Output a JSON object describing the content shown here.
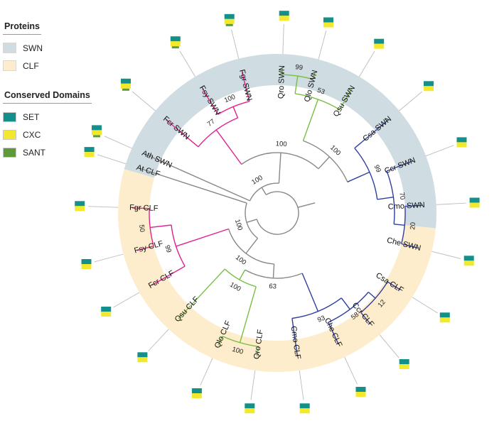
{
  "legend": {
    "proteins_title": "Proteins",
    "proteins": [
      {
        "label": "SWN",
        "color": "#cfdce2"
      },
      {
        "label": "CLF",
        "color": "#fdedcc"
      }
    ],
    "domains_title": "Conserved Domains",
    "domains": [
      {
        "label": "SET",
        "color": "#14908a"
      },
      {
        "label": "CXC",
        "color": "#f2e92e"
      },
      {
        "label": "SANT",
        "color": "#5e9a3a"
      }
    ]
  },
  "groups": [
    {
      "name": "SWN",
      "color": "#cfdce2"
    },
    {
      "name": "CLF",
      "color": "#fdedcc"
    }
  ],
  "leaves": [
    {
      "label": "Ath SWN",
      "group": "SWN",
      "color": "#888888",
      "domains": [
        "SET",
        "CXC",
        "SANT"
      ]
    },
    {
      "label": "Fcr SWN",
      "group": "SWN",
      "color": "#e0228f",
      "domains": [
        "SET",
        "CXC",
        "SANT"
      ]
    },
    {
      "label": "Fsy SWN",
      "group": "SWN",
      "color": "#e0228f",
      "domains": [
        "SET",
        "CXC",
        "SANT"
      ]
    },
    {
      "label": "Fgr SWN",
      "group": "SWN",
      "color": "#e0228f",
      "domains": [
        "SET",
        "CXC",
        "SANT"
      ]
    },
    {
      "label": "Qro SWN",
      "group": "SWN",
      "color": "#77c043",
      "domains": [
        "SET",
        "CXC"
      ]
    },
    {
      "label": "Qlo SWN",
      "group": "SWN",
      "color": "#77c043",
      "domains": [
        "SET",
        "CXC"
      ]
    },
    {
      "label": "Qsu SWN",
      "group": "SWN",
      "color": "#77c043",
      "domains": [
        "SET",
        "CXC"
      ]
    },
    {
      "label": "Csa SWN",
      "group": "SWN",
      "color": "#2f3f9e",
      "domains": [
        "SET",
        "CXC"
      ]
    },
    {
      "label": "Ccr SWN",
      "group": "SWN",
      "color": "#2f3f9e",
      "domains": [
        "SET",
        "CXC"
      ]
    },
    {
      "label": "Cmo SWN",
      "group": "SWN",
      "color": "#2f3f9e",
      "domains": [
        "SET",
        "CXC"
      ]
    },
    {
      "label": "Che SWN",
      "group": "SWN",
      "color": "#2f3f9e",
      "domains": [
        "SET",
        "CXC"
      ]
    },
    {
      "label": "Csa CLF",
      "group": "CLF",
      "color": "#2f3f9e",
      "domains": [
        "SET",
        "CXC"
      ]
    },
    {
      "label": "Ccr CLF",
      "group": "CLF",
      "color": "#2f3f9e",
      "domains": [
        "SET",
        "CXC"
      ]
    },
    {
      "label": "Che CLF",
      "group": "CLF",
      "color": "#2f3f9e",
      "domains": [
        "SET",
        "CXC"
      ]
    },
    {
      "label": "Cmo CLF",
      "group": "CLF",
      "color": "#2f3f9e",
      "domains": [
        "SET",
        "CXC"
      ]
    },
    {
      "label": "Qro CLF",
      "group": "CLF",
      "color": "#77c043",
      "domains": [
        "SET",
        "CXC"
      ]
    },
    {
      "label": "Qlo CLF",
      "group": "CLF",
      "color": "#77c043",
      "domains": [
        "SET",
        "CXC"
      ]
    },
    {
      "label": "Qsu CLF",
      "group": "CLF",
      "color": "#77c043",
      "domains": [
        "SET",
        "CXC"
      ]
    },
    {
      "label": "Fcr CLF",
      "group": "CLF",
      "color": "#e0228f",
      "domains": [
        "SET",
        "CXC"
      ]
    },
    {
      "label": "Fsy CLF",
      "group": "CLF",
      "color": "#e0228f",
      "domains": [
        "SET",
        "CXC"
      ]
    },
    {
      "label": "Fgr CLF",
      "group": "CLF",
      "color": "#e0228f",
      "domains": [
        "SET",
        "CXC"
      ]
    },
    {
      "label": "At CLF",
      "group": "CLF",
      "color": "#888888",
      "domains": [
        "SET",
        "CXC"
      ]
    }
  ],
  "bootstrap_labels": [
    "100",
    "77",
    "100",
    "99",
    "53",
    "100",
    "99",
    "70",
    "20",
    "100",
    "100",
    "50",
    "99",
    "100",
    "63",
    "93",
    "58",
    "12",
    "100",
    "100"
  ]
}
